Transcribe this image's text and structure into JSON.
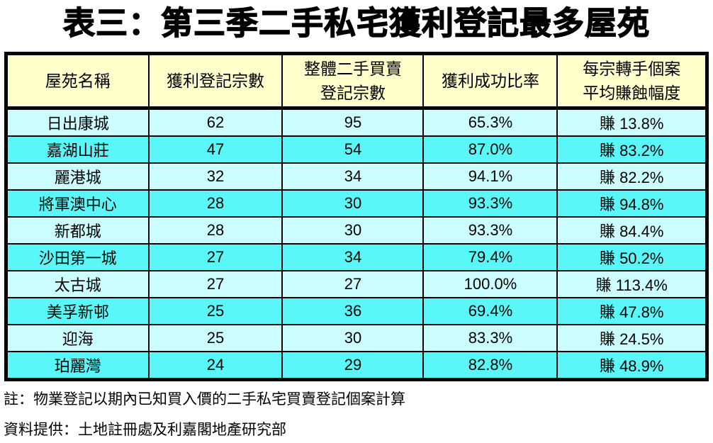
{
  "chart_data": {
    "type": "table",
    "title": "表三：第三季二手私宅獲利登記最多屋苑",
    "columns": [
      "屋苑名稱",
      "獲利登記宗數",
      "整體二手買賣登記宗數",
      "獲利成功比率",
      "每宗轉手個案平均賺蝕幅度"
    ],
    "header_lines": [
      [
        "屋苑名稱"
      ],
      [
        "獲利登記宗數"
      ],
      [
        "整體二手買賣",
        "登記宗數"
      ],
      [
        "獲利成功比率"
      ],
      [
        "每宗轉手個案",
        "平均賺蝕幅度"
      ]
    ],
    "rows": [
      [
        "日出康城",
        "62",
        "95",
        "65.3%",
        "賺 13.8%"
      ],
      [
        "嘉湖山莊",
        "47",
        "54",
        "87.0%",
        "賺 83.2%"
      ],
      [
        "麗港城",
        "32",
        "34",
        "94.1%",
        "賺 82.2%"
      ],
      [
        "將軍澳中心",
        "28",
        "30",
        "93.3%",
        "賺 94.8%"
      ],
      [
        "新都城",
        "28",
        "30",
        "93.3%",
        "賺 84.4%"
      ],
      [
        "沙田第一城",
        "27",
        "34",
        "79.4%",
        "賺 50.2%"
      ],
      [
        "太古城",
        "27",
        "27",
        "100.0%",
        "賺 113.4%"
      ],
      [
        "美孚新邨",
        "25",
        "36",
        "69.4%",
        "賺 47.8%"
      ],
      [
        "迎海",
        "25",
        "30",
        "83.3%",
        "賺 24.5%"
      ],
      [
        "珀麗灣",
        "24",
        "29",
        "82.8%",
        "賺 48.9%"
      ]
    ],
    "layout": {
      "legend": "none",
      "grid": "full-borders",
      "row_striping": "alternating-cyan"
    }
  },
  "notes": {
    "note": "註：物業登記以期內已知買入價的二手私宅買賣登記個案計算",
    "source": "資料提供：土地註冊處及利嘉閣地產研究部"
  },
  "colors": {
    "header_bg": "#FFFFCC",
    "row_light": "#CCFEFF",
    "row_bright": "#5BF6F8",
    "border": "#000000",
    "text": "#000000",
    "background": "#FFFFFF"
  }
}
